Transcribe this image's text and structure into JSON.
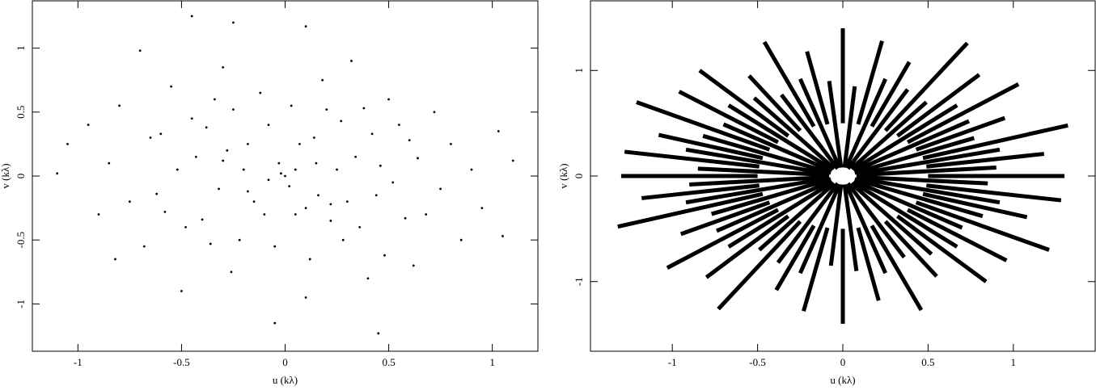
{
  "chart_data": [
    {
      "type": "scatter",
      "xlabel": "u (kλ)",
      "ylabel": "v (kλ)",
      "color": "#000000",
      "xlim": [
        -1.22,
        1.22
      ],
      "ylim": [
        -1.37,
        1.37
      ],
      "xticks": [
        -1,
        -0.5,
        0,
        0.5,
        1
      ],
      "yticks": [
        -1,
        -0.5,
        0,
        0.5,
        1
      ],
      "x": [
        -1.1,
        -1.05,
        -0.95,
        -0.9,
        -0.85,
        -0.82,
        -0.8,
        -0.75,
        -0.7,
        -0.68,
        -0.65,
        -0.62,
        -0.6,
        -0.58,
        -0.55,
        -0.52,
        -0.5,
        -0.48,
        -0.45,
        -0.43,
        -0.4,
        -0.38,
        -0.36,
        -0.34,
        -0.32,
        -0.3,
        -0.28,
        -0.26,
        -0.25,
        -0.22,
        -0.2,
        -0.18,
        -0.15,
        -0.12,
        -0.1,
        -0.08,
        -0.05,
        -0.03,
        0,
        0.02,
        0.03,
        0.05,
        0.07,
        0.1,
        0.12,
        0.14,
        0.16,
        0.18,
        0.2,
        0.22,
        0.25,
        0.27,
        0.28,
        0.3,
        0.32,
        0.34,
        0.36,
        0.38,
        0.4,
        0.42,
        0.44,
        0.46,
        0.48,
        0.5,
        0.52,
        0.55,
        0.58,
        0.6,
        0.62,
        0.64,
        0.68,
        0.72,
        0.75,
        0.8,
        0.85,
        0.9,
        0.95,
        1.03,
        1.05,
        1.1,
        -0.25,
        0.1,
        -0.05,
        0.45,
        -0.45,
        -0.02,
        0.05,
        -0.08,
        0.15,
        -0.18,
        0.22,
        -0.3,
        0.1
      ],
      "values": [
        0.02,
        0.25,
        0.4,
        -0.3,
        0.1,
        -0.65,
        0.55,
        -0.2,
        0.98,
        -0.55,
        0.3,
        -0.14,
        0.33,
        -0.28,
        0.7,
        0.05,
        -0.9,
        -0.4,
        0.45,
        0.15,
        -0.34,
        0.38,
        -0.53,
        0.6,
        -0.1,
        0.85,
        0.2,
        -0.75,
        0.52,
        -0.5,
        0.05,
        0.25,
        -0.2,
        0.65,
        -0.3,
        0.4,
        -0.55,
        0.1,
        0,
        -0.08,
        0.55,
        -0.3,
        0.25,
        -0.95,
        -0.65,
        0.3,
        -0.15,
        0.75,
        0.52,
        -0.35,
        0.05,
        0.43,
        -0.5,
        -0.2,
        0.9,
        0.15,
        -0.4,
        0.53,
        -0.8,
        0.33,
        -0.15,
        0.08,
        -0.62,
        0.6,
        -0.05,
        0.4,
        -0.33,
        0.28,
        -0.7,
        0.14,
        -0.3,
        0.5,
        -0.1,
        0.25,
        -0.5,
        0.05,
        -0.25,
        0.35,
        -0.47,
        0.12,
        1.2,
        1.17,
        -1.15,
        -1.23,
        1.25,
        0.02,
        0.05,
        -0.03,
        0.1,
        -0.12,
        -0.22,
        0.12,
        -0.25
      ]
    },
    {
      "type": "segments",
      "xlabel": "u (kλ)",
      "ylabel": "v (kλ)",
      "color": "#000000",
      "xlim": [
        -1.48,
        1.48
      ],
      "ylim": [
        -1.66,
        1.66
      ],
      "xticks": [
        -1,
        -0.5,
        0,
        0.5,
        1
      ],
      "yticks": [
        -1,
        0,
        1
      ],
      "segments": [
        [
          0.5,
          0,
          1.3,
          0
        ],
        [
          0.49,
          0.09,
          1.18,
          0.21
        ],
        [
          0.47,
          0.17,
          1.32,
          0.48
        ],
        [
          0.43,
          0.25,
          0.95,
          0.55
        ],
        [
          0.38,
          0.32,
          1.03,
          0.87
        ],
        [
          0.32,
          0.38,
          0.8,
          0.96
        ],
        [
          0.25,
          0.43,
          0.73,
          1.26
        ],
        [
          0.17,
          0.47,
          0.39,
          1.08
        ],
        [
          0.09,
          0.49,
          0.23,
          1.28
        ],
        [
          0,
          0.5,
          0,
          1.4
        ],
        [
          -0.09,
          0.49,
          -0.21,
          1.18
        ],
        [
          -0.17,
          0.47,
          -0.46,
          1.27
        ],
        [
          -0.25,
          0.43,
          -0.55,
          0.95
        ],
        [
          -0.32,
          0.38,
          -0.84,
          1.0
        ],
        [
          -0.38,
          0.32,
          -0.96,
          0.8
        ],
        [
          -0.43,
          0.25,
          -1.21,
          0.7
        ],
        [
          -0.47,
          0.17,
          -1.08,
          0.39
        ],
        [
          -0.49,
          0.09,
          -1.28,
          0.23
        ],
        [
          -0.5,
          0,
          -1.3,
          0
        ],
        [
          -0.49,
          -0.09,
          -1.18,
          -0.21
        ],
        [
          -0.47,
          -0.17,
          -1.32,
          -0.48
        ],
        [
          -0.43,
          -0.25,
          -0.95,
          -0.55
        ],
        [
          -0.38,
          -0.32,
          -1.03,
          -0.87
        ],
        [
          -0.32,
          -0.38,
          -0.8,
          -0.96
        ],
        [
          -0.25,
          -0.43,
          -0.73,
          -1.26
        ],
        [
          -0.17,
          -0.47,
          -0.39,
          -1.08
        ],
        [
          -0.09,
          -0.49,
          -0.23,
          -1.28
        ],
        [
          0,
          -0.5,
          0,
          -1.4
        ],
        [
          0.09,
          -0.49,
          0.21,
          -1.18
        ],
        [
          0.17,
          -0.47,
          0.46,
          -1.27
        ],
        [
          0.25,
          -0.43,
          0.55,
          -0.95
        ],
        [
          0.32,
          -0.38,
          0.84,
          -1.0
        ],
        [
          0.38,
          -0.32,
          0.96,
          -0.8
        ],
        [
          0.43,
          -0.25,
          1.21,
          -0.7
        ],
        [
          0.47,
          -0.17,
          1.08,
          -0.39
        ],
        [
          0.49,
          -0.09,
          1.28,
          -0.23
        ],
        [
          0.08,
          0.01,
          0.9,
          0.08
        ],
        [
          0.08,
          0.02,
          0.92,
          0.25
        ],
        [
          0.07,
          0.03,
          0.77,
          0.36
        ],
        [
          0.07,
          0.05,
          0.74,
          0.52
        ],
        [
          0.06,
          0.06,
          0.67,
          0.67
        ],
        [
          0.05,
          0.07,
          0.49,
          0.7
        ],
        [
          0.03,
          0.07,
          0.38,
          0.82
        ],
        [
          0.02,
          0.08,
          0.25,
          0.92
        ],
        [
          0.01,
          0.08,
          0.07,
          0.85
        ],
        [
          -0.01,
          0.08,
          -0.08,
          0.9
        ],
        [
          -0.02,
          0.08,
          -0.25,
          0.92
        ],
        [
          -0.03,
          0.07,
          -0.36,
          0.77
        ],
        [
          -0.05,
          0.07,
          -0.52,
          0.74
        ],
        [
          -0.06,
          0.06,
          -0.67,
          0.67
        ],
        [
          -0.07,
          0.05,
          -0.7,
          0.49
        ],
        [
          -0.07,
          0.03,
          -0.82,
          0.38
        ],
        [
          -0.08,
          0.02,
          -0.92,
          0.25
        ],
        [
          -0.08,
          0.01,
          -0.85,
          0.07
        ],
        [
          -0.08,
          -0.01,
          -0.9,
          -0.08
        ],
        [
          -0.08,
          -0.02,
          -0.92,
          -0.25
        ],
        [
          -0.07,
          -0.03,
          -0.77,
          -0.36
        ],
        [
          -0.07,
          -0.05,
          -0.74,
          -0.52
        ],
        [
          -0.06,
          -0.06,
          -0.67,
          -0.67
        ],
        [
          -0.05,
          -0.07,
          -0.49,
          -0.7
        ],
        [
          -0.03,
          -0.07,
          -0.38,
          -0.82
        ],
        [
          -0.02,
          -0.08,
          -0.25,
          -0.92
        ],
        [
          -0.01,
          -0.08,
          -0.07,
          -0.85
        ],
        [
          0.01,
          -0.08,
          0.08,
          -0.9
        ],
        [
          0.02,
          -0.08,
          0.25,
          -0.92
        ],
        [
          0.03,
          -0.07,
          0.36,
          -0.77
        ],
        [
          0.05,
          -0.07,
          0.52,
          -0.74
        ],
        [
          0.06,
          -0.06,
          0.67,
          -0.67
        ],
        [
          0.07,
          -0.05,
          0.7,
          -0.49
        ],
        [
          0.07,
          -0.03,
          0.82,
          -0.38
        ],
        [
          0.08,
          -0.02,
          0.92,
          -0.25
        ],
        [
          0.08,
          -0.01,
          0.85,
          -0.07
        ]
      ]
    }
  ]
}
